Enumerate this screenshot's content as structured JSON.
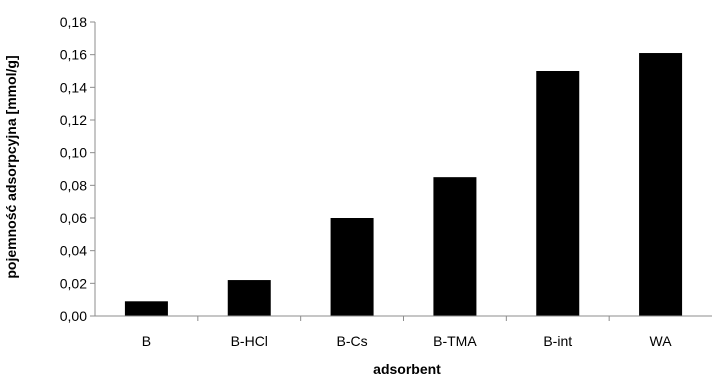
{
  "chart_data": {
    "type": "bar",
    "title": "",
    "xlabel": "adsorbent",
    "ylabel": "pojemność adsorpcyjna [mmol/g]",
    "categories": [
      "B",
      "B-HCl",
      "B-Cs",
      "B-TMA",
      "B-int",
      "WA"
    ],
    "series": [
      {
        "values": [
          0.009,
          0.022,
          0.06,
          0.085,
          0.15,
          0.161
        ]
      }
    ],
    "ylim": [
      0,
      0.18
    ],
    "y_ticks": [
      "0,00",
      "0,02",
      "0,04",
      "0,06",
      "0,08",
      "0,10",
      "0,12",
      "0,14",
      "0,16",
      "0,18"
    ],
    "bar_color": "#000000",
    "grid": false,
    "legend": "none"
  }
}
